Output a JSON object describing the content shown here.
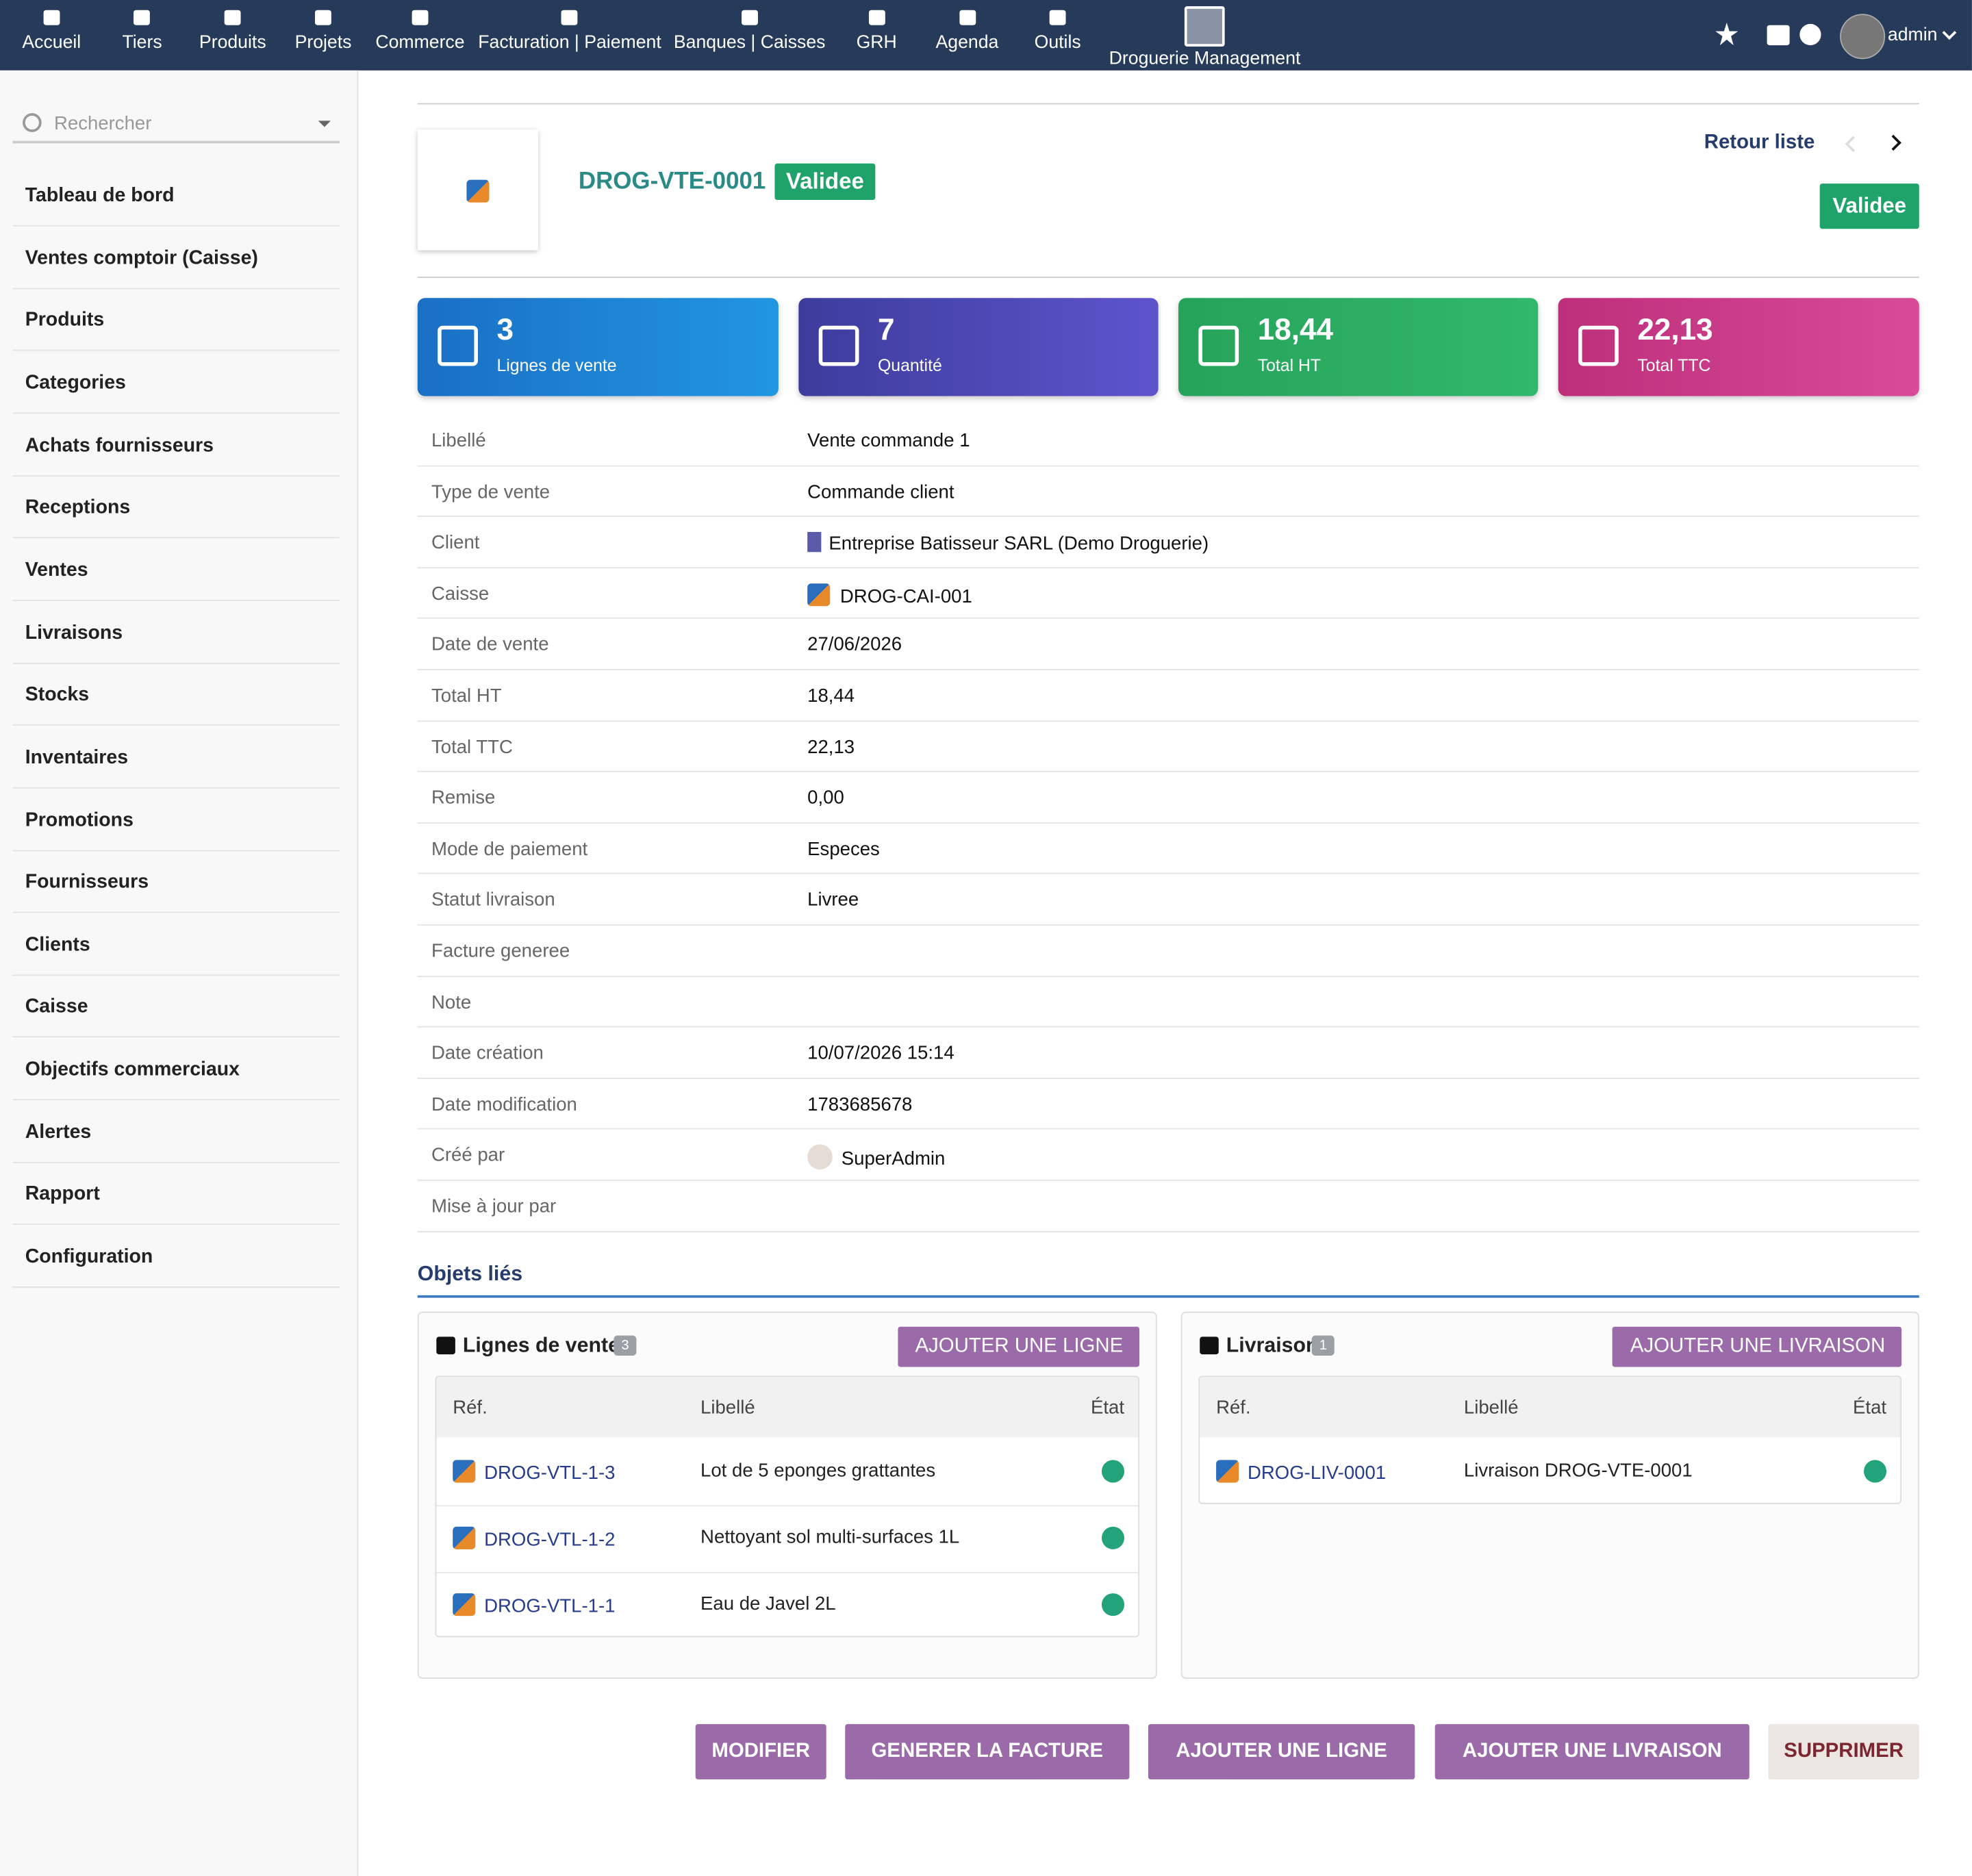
{
  "nav": {
    "items": [
      "Accueil",
      "Tiers",
      "Produits",
      "Projets",
      "Commerce",
      "Facturation | Paiement",
      "Banques | Caisses",
      "GRH",
      "Agenda",
      "Outils",
      "Droguerie Management"
    ],
    "user": "admin"
  },
  "sidebar": {
    "search_placeholder": "Rechercher",
    "items": [
      "Tableau de bord",
      "Ventes comptoir (Caisse)",
      "Produits",
      "Categories",
      "Achats fournisseurs",
      "Receptions",
      "Ventes",
      "Livraisons",
      "Stocks",
      "Inventaires",
      "Promotions",
      "Fournisseurs",
      "Clients",
      "Caisse",
      "Objectifs commerciaux",
      "Alertes",
      "Rapport",
      "Configuration"
    ]
  },
  "header": {
    "ref": "DROG-VTE-0001",
    "status": "Validee",
    "back": "Retour liste",
    "status_button": "Validee"
  },
  "stats": [
    {
      "value": "3",
      "label": "Lignes de vente"
    },
    {
      "value": "7",
      "label": "Quantité"
    },
    {
      "value": "18,44",
      "label": "Total HT"
    },
    {
      "value": "22,13",
      "label": "Total TTC"
    }
  ],
  "fields": [
    {
      "label": "Libellé",
      "value": "Vente commande 1"
    },
    {
      "label": "Type de vente",
      "value": "Commande client"
    },
    {
      "label": "Client",
      "value": "Entreprise Batisseur SARL (Demo Droguerie)"
    },
    {
      "label": "Caisse",
      "value": "DROG-CAI-001"
    },
    {
      "label": "Date de vente",
      "value": "27/06/2026"
    },
    {
      "label": "Total HT",
      "value": "18,44"
    },
    {
      "label": "Total TTC",
      "value": "22,13"
    },
    {
      "label": "Remise",
      "value": "0,00"
    },
    {
      "label": "Mode de paiement",
      "value": "Especes"
    },
    {
      "label": "Statut livraison",
      "value": "Livree"
    },
    {
      "label": "Facture generee"
    },
    {
      "label": "Note"
    },
    {
      "label": "Date création",
      "value": "10/07/2026 15:14"
    },
    {
      "label": "Date modification",
      "value": "1783685678"
    },
    {
      "label": "Créé par",
      "value": "SuperAdmin"
    },
    {
      "label": "Mise à jour par"
    }
  ],
  "linked": {
    "title": "Objets liés",
    "panels": [
      {
        "title": "Lignes de vente",
        "count": "3",
        "button": "AJOUTER UNE LIGNE",
        "columns": [
          "Réf.",
          "Libellé",
          "État"
        ],
        "rows": [
          {
            "ref": "DROG-VTL-1-3",
            "label": "Lot de 5 eponges grattantes"
          },
          {
            "ref": "DROG-VTL-1-2",
            "label": "Nettoyant sol multi-surfaces 1L"
          },
          {
            "ref": "DROG-VTL-1-1",
            "label": "Eau de Javel 2L"
          }
        ]
      },
      {
        "title": "Livraisons",
        "count": "1",
        "button": "AJOUTER UNE LIVRAISON",
        "columns": [
          "Réf.",
          "Libellé",
          "État"
        ],
        "rows": [
          {
            "ref": "DROG-LIV-0001",
            "label": "Livraison DROG-VTE-0001"
          }
        ]
      }
    ]
  },
  "actions": [
    "MODIFIER",
    "GENERER LA FACTURE",
    "AJOUTER UNE LIGNE",
    "AJOUTER UNE LIVRAISON",
    "SUPPRIMER"
  ]
}
